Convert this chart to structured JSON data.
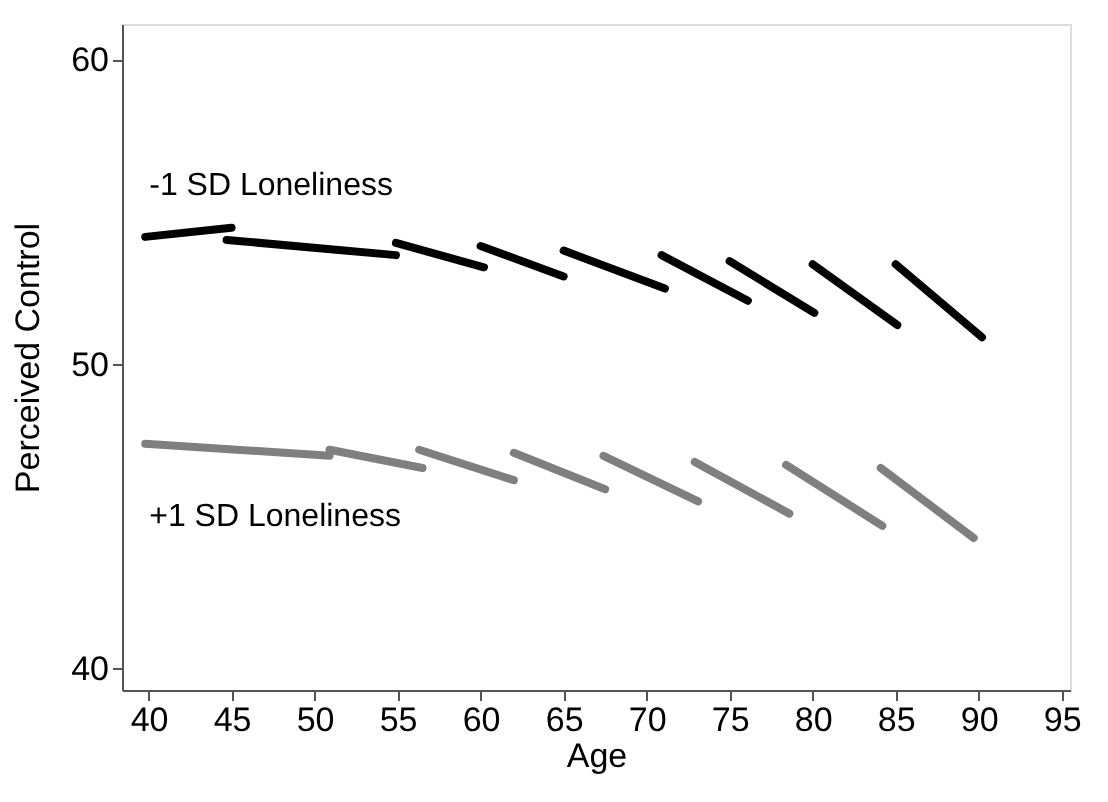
{
  "chart_data": {
    "type": "line",
    "xlabel": "Age",
    "ylabel": "Perceived Control",
    "xlim": [
      38.4,
      95.5
    ],
    "xticks": [
      40,
      45,
      50,
      55,
      60,
      65,
      70,
      75,
      80,
      85,
      90,
      95
    ],
    "ylim": [
      39.3,
      61.2
    ],
    "yticks": [
      40,
      50,
      60
    ],
    "grid": false,
    "marker": "none",
    "line_style": "solid",
    "series": [
      {
        "name": "-1 SD Loneliness",
        "color": "#000000",
        "x": [
          39.8,
          45
        ],
        "values": [
          54.2,
          54.5
        ]
      },
      {
        "color": "#000000",
        "x": [
          44.7,
          54.9
        ],
        "values": [
          54.1,
          53.6
        ]
      },
      {
        "color": "#000000",
        "x": [
          54.9,
          60.2
        ],
        "values": [
          54.0,
          53.2
        ]
      },
      {
        "color": "#000000",
        "x": [
          60,
          65
        ],
        "values": [
          53.9,
          52.9
        ]
      },
      {
        "color": "#000000",
        "x": [
          65,
          71.1
        ],
        "values": [
          53.75,
          52.5
        ]
      },
      {
        "color": "#000000",
        "x": [
          70.9,
          76.1
        ],
        "values": [
          53.6,
          52.1
        ]
      },
      {
        "color": "#000000",
        "x": [
          75,
          80.1
        ],
        "values": [
          53.4,
          51.7
        ]
      },
      {
        "color": "#000000",
        "x": [
          80,
          85.1
        ],
        "values": [
          53.3,
          51.3
        ]
      },
      {
        "color": "#000000",
        "x": [
          85,
          90.2
        ],
        "values": [
          53.3,
          50.9
        ]
      },
      {
        "name": "+1 SD Loneliness",
        "color": "#7f7f7f",
        "x": [
          39.8,
          50.9
        ],
        "values": [
          47.4,
          47.0
        ]
      },
      {
        "color": "#7f7f7f",
        "x": [
          50.9,
          56.5
        ],
        "values": [
          47.2,
          46.6
        ]
      },
      {
        "color": "#7f7f7f",
        "x": [
          56.3,
          62
        ],
        "values": [
          47.2,
          46.2
        ]
      },
      {
        "color": "#7f7f7f",
        "x": [
          62,
          67.5
        ],
        "values": [
          47.1,
          45.9
        ]
      },
      {
        "color": "#7f7f7f",
        "x": [
          67.4,
          73.1
        ],
        "values": [
          47.0,
          45.5
        ]
      },
      {
        "color": "#7f7f7f",
        "x": [
          72.9,
          78.6
        ],
        "values": [
          46.8,
          45.1
        ]
      },
      {
        "color": "#7f7f7f",
        "x": [
          78.4,
          84.2
        ],
        "values": [
          46.7,
          44.7
        ]
      },
      {
        "color": "#7f7f7f",
        "x": [
          84.1,
          89.7
        ],
        "values": [
          46.6,
          44.3
        ]
      }
    ]
  }
}
